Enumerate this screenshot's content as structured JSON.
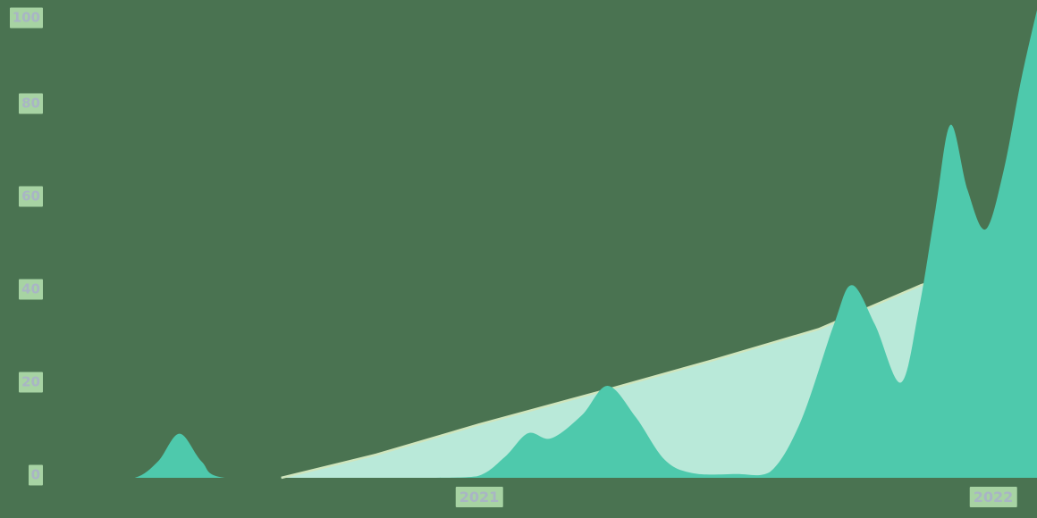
{
  "colors": {
    "background": "#4a7351",
    "primary_series": "#4ec9ac",
    "secondary_series": "#b9e9d9",
    "secondary_edge": "#cfe5bd",
    "tick_label_box": "#a7d3a3",
    "tick_label_text": "#a9b5c5"
  },
  "chart_data": {
    "type": "area",
    "title": "",
    "xlabel": "",
    "ylabel": "",
    "xlim": [
      2020.163,
      2022.09
    ],
    "ylim": [
      0,
      100
    ],
    "grid": false,
    "legend": "none",
    "y_ticks": [
      {
        "label": "0",
        "value": 0
      },
      {
        "label": "20",
        "value": 20
      },
      {
        "label": "40",
        "value": 40
      },
      {
        "label": "60",
        "value": 60
      },
      {
        "label": "80",
        "value": 80
      },
      {
        "label": "100",
        "value": 100
      }
    ],
    "x_ticks": [
      {
        "label": "2021",
        "t": 2021
      },
      {
        "label": "2022",
        "t": 2022
      }
    ],
    "series": [
      {
        "name": "light-mint-ramp-series",
        "color_key": "secondary_series",
        "edge_key": "secondary_edge",
        "smooth": false,
        "points": [
          [
            2020.615,
            0
          ],
          [
            2020.8,
            5
          ],
          [
            2021.0,
            11.5
          ],
          [
            2021.25,
            19
          ],
          [
            2021.46,
            25.5
          ],
          [
            2021.66,
            32
          ],
          [
            2021.86,
            41.5
          ],
          [
            2022.09,
            49
          ]
        ]
      },
      {
        "name": "teal-spiky-series",
        "color_key": "primary_series",
        "edge_key": null,
        "smooth": true,
        "points": [
          [
            2020.163,
            0
          ],
          [
            2020.26,
            0
          ],
          [
            2020.33,
            0
          ],
          [
            2020.375,
            3.5
          ],
          [
            2020.417,
            9.5
          ],
          [
            2020.46,
            3.5
          ],
          [
            2020.505,
            0
          ],
          [
            2020.7,
            0
          ],
          [
            2020.9,
            0
          ],
          [
            2020.995,
            0.3
          ],
          [
            2021.05,
            4.5
          ],
          [
            2021.095,
            9.6
          ],
          [
            2021.14,
            8.5
          ],
          [
            2021.2,
            13.5
          ],
          [
            2021.25,
            19.8
          ],
          [
            2021.305,
            13
          ],
          [
            2021.36,
            4
          ],
          [
            2021.415,
            1
          ],
          [
            2021.5,
            0.8
          ],
          [
            2021.565,
            1.2
          ],
          [
            2021.625,
            12
          ],
          [
            2021.69,
            33
          ],
          [
            2021.725,
            41.5
          ],
          [
            2021.77,
            33
          ],
          [
            2021.82,
            20.5
          ],
          [
            2021.855,
            36
          ],
          [
            2021.888,
            58
          ],
          [
            2021.917,
            76
          ],
          [
            2021.95,
            62
          ],
          [
            2021.985,
            53.5
          ],
          [
            2022.02,
            66
          ],
          [
            2022.055,
            86
          ],
          [
            2022.09,
            103
          ]
        ]
      }
    ]
  }
}
